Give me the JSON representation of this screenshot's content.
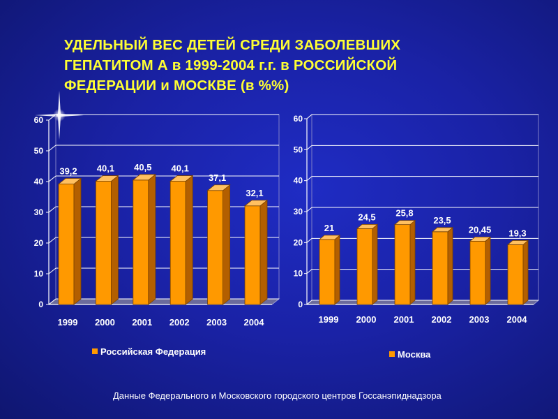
{
  "title_lines": [
    "УДЕЛЬНЫЙ ВЕС ДЕТЕЙ СРЕДИ ЗАБОЛЕВШИХ",
    "ГЕПАТИТОМ А  в 1999-2004 г.г. в РОССИЙСКОЙ",
    "ФЕДЕРАЦИИ и МОСКВЕ (в %%)"
  ],
  "source_note": "Данные Федерального и Московского городского центров Госсанэпиднадзора",
  "colors": {
    "background": "#1a22a6",
    "title": "#ffff33",
    "bar": "#ff9900",
    "bar_side": "#b35f00",
    "bar_top": "#ffc060",
    "text": "#ffffff"
  },
  "chart_data": [
    {
      "type": "bar",
      "categories": [
        "1999",
        "2000",
        "2001",
        "2002",
        "2003",
        "2004"
      ],
      "series": [
        {
          "name": "Российская Федерация",
          "values": [
            39.2,
            40.1,
            40.5,
            40.1,
            37.1,
            32.1
          ]
        }
      ],
      "value_labels": [
        "39,2",
        "40,1",
        "40,5",
        "40,1",
        "37,1",
        "32,1"
      ],
      "yticks": [
        "0",
        "10",
        "20",
        "30",
        "40",
        "50",
        "60"
      ],
      "ylim": [
        0,
        60
      ],
      "grid": true,
      "legend_position": "bottom"
    },
    {
      "type": "bar",
      "categories": [
        "1999",
        "2000",
        "2001",
        "2002",
        "2003",
        "2004"
      ],
      "series": [
        {
          "name": "Москва",
          "values": [
            21,
            24.5,
            25.8,
            23.5,
            20.45,
            19.3
          ]
        }
      ],
      "value_labels": [
        "21",
        "24,5",
        "25,8",
        "23,5",
        "20,45",
        "19,3"
      ],
      "yticks": [
        "0",
        "10",
        "20",
        "30",
        "40",
        "50",
        "60"
      ],
      "ylim": [
        0,
        60
      ],
      "grid": true,
      "legend_position": "bottom"
    }
  ]
}
